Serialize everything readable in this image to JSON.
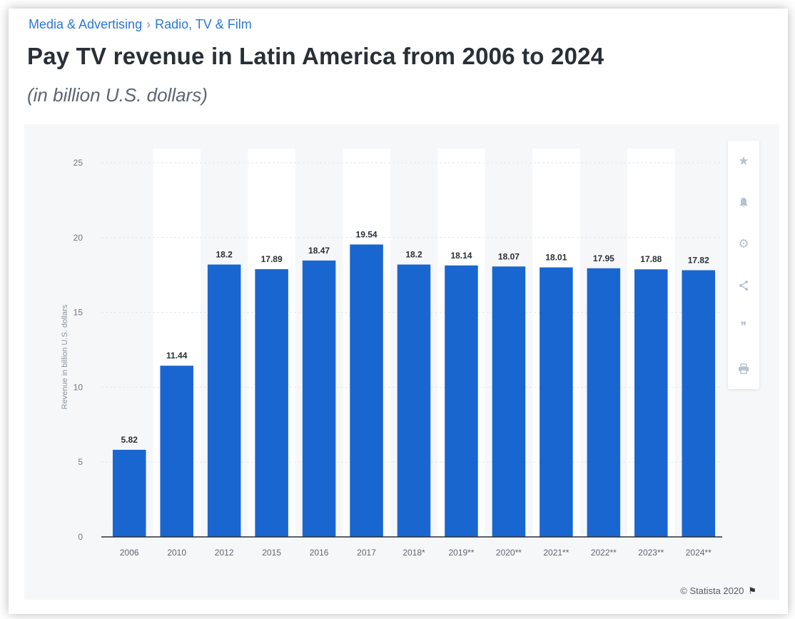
{
  "breadcrumb": {
    "items": [
      "Media & Advertising",
      "Radio, TV & Film"
    ],
    "separator": "›"
  },
  "header": {
    "title": "Pay TV revenue in Latin America from 2006 to 2024",
    "subtitle": "(in billion U.S. dollars)"
  },
  "toolbar": {
    "icons": [
      "star-icon",
      "bell-icon",
      "gear-icon",
      "share-icon",
      "quote-icon",
      "print-icon"
    ]
  },
  "footer": {
    "credit": "© Statista 2020",
    "flag_icon": "flag-icon"
  },
  "colors": {
    "bar": "#1a66d1",
    "accent": "#2b78d4",
    "panel": "#f6f7f9"
  },
  "chart_data": {
    "type": "bar",
    "categories": [
      "2006",
      "2010",
      "2012",
      "2015",
      "2016",
      "2017",
      "2018*",
      "2019**",
      "2020**",
      "2021**",
      "2022**",
      "2023**",
      "2024**"
    ],
    "values": [
      5.82,
      11.44,
      18.2,
      17.89,
      18.47,
      19.54,
      18.2,
      18.14,
      18.07,
      18.01,
      17.95,
      17.88,
      17.82
    ],
    "value_labels": [
      "5.82",
      "11.44",
      "18.2",
      "17.89",
      "18.47",
      "19.54",
      "18.2",
      "18.14",
      "18.07",
      "18.01",
      "17.95",
      "17.88",
      "17.82"
    ],
    "title": "Pay TV revenue in Latin America from 2006 to 2024",
    "subtitle": "(in billion U.S. dollars)",
    "xlabel": "",
    "ylabel": "Revenue in billion U.S. dollars",
    "ylim": [
      0,
      25
    ],
    "yticks": [
      0,
      5,
      10,
      15,
      20,
      25
    ],
    "grid": true,
    "legend": "none"
  }
}
